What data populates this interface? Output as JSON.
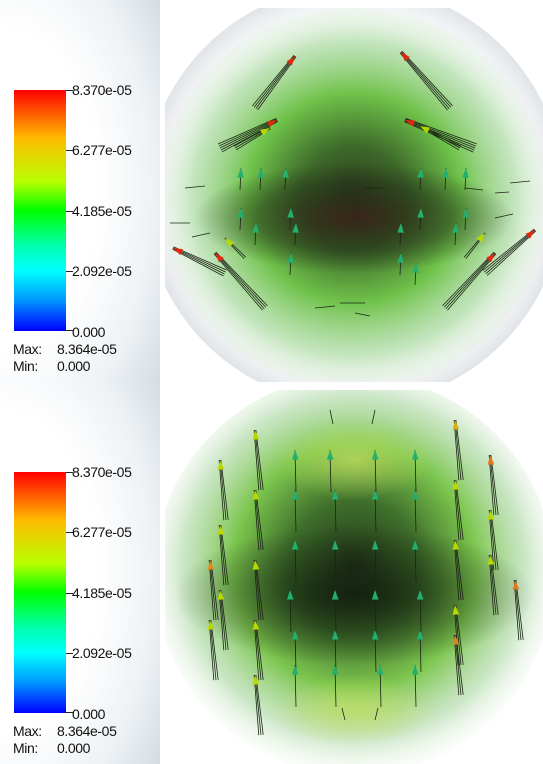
{
  "panels": [
    {
      "id": "top",
      "legend": {
        "ticks": [
          "8.370e-05",
          "6.277e-05",
          "4.185e-05",
          "2.092e-05",
          "0.000"
        ],
        "max_label": "Max:",
        "max_value": "8.364e-05",
        "min_label": "Min:",
        "min_value": "0.000"
      }
    },
    {
      "id": "bottom",
      "legend": {
        "ticks": [
          "8.370e-05",
          "6.277e-05",
          "4.185e-05",
          "2.092e-05",
          "0.000"
        ],
        "max_label": "Max:",
        "max_value": "8.364e-05",
        "min_label": "Min:",
        "min_value": "0.000"
      }
    }
  ],
  "colors": {
    "background": "#ffffff",
    "field_inner": "#3a5a2c",
    "field_glow": "#6fcf4a",
    "arrow_high": "#e02a10",
    "arrow_mid": "#b8d800",
    "arrow_low": "#20b070"
  }
}
